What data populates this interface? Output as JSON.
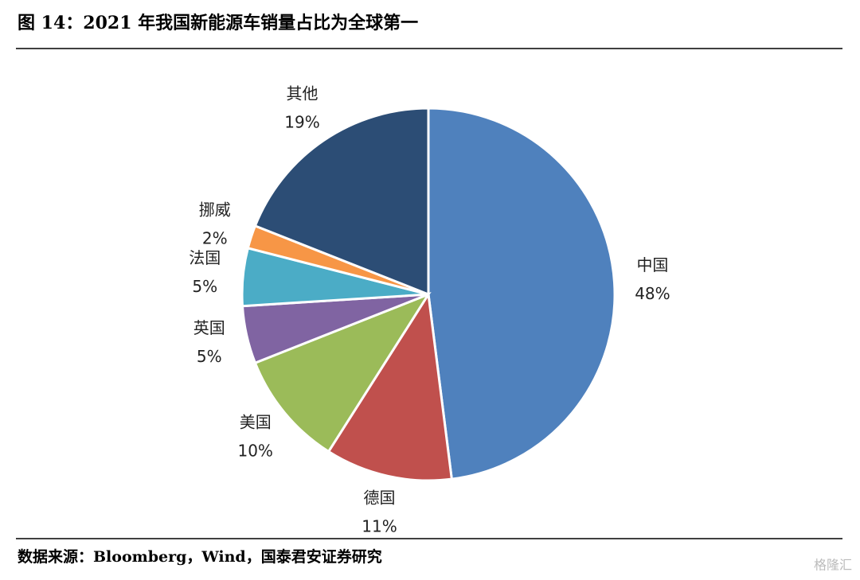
{
  "chart_data": {
    "type": "pie",
    "title": "图 14：2021 年我国新能源车销量占比为全球第一",
    "categories": [
      "中国",
      "德国",
      "美国",
      "英国",
      "法国",
      "挪威",
      "其他"
    ],
    "values": [
      48,
      11,
      10,
      5,
      5,
      2,
      19
    ],
    "value_labels": [
      "48%",
      "11%",
      "10%",
      "5%",
      "5%",
      "2%",
      "19%"
    ],
    "colors": [
      "#4f81bd",
      "#c0504d",
      "#9bbb59",
      "#8064a2",
      "#4bacc6",
      "#f79646",
      "#2c4d75"
    ],
    "source": "数据来源：Bloomberg，Wind，国泰君安证券研究",
    "watermark": "格隆汇"
  }
}
